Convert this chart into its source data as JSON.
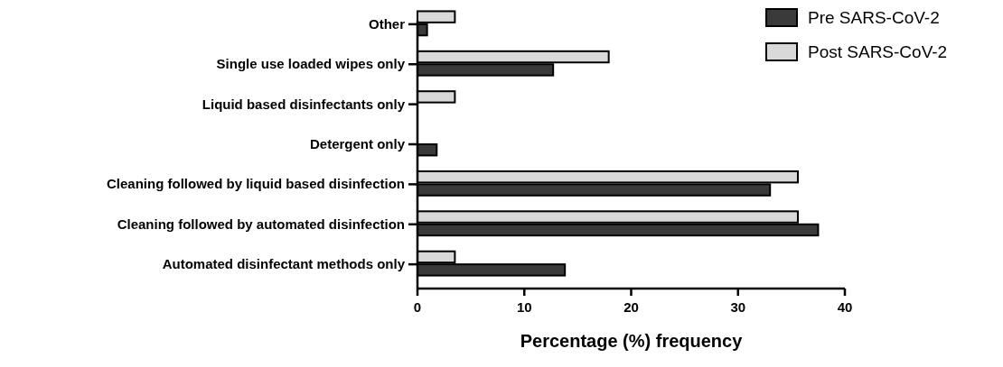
{
  "chart_data": {
    "type": "bar",
    "orientation": "horizontal",
    "xlabel": "Percentage (%) frequency",
    "categories": [
      "Other",
      "Single use loaded wipes only",
      "Liquid based disinfectants only",
      "Detergent only",
      "Cleaning followed by liquid based disinfection",
      "Cleaning followed by automated disinfection",
      "Automated disinfectant methods only"
    ],
    "series": [
      {
        "name": "Pre SARS-CoV-2",
        "color": "#3a3a3a",
        "values": [
          0.9,
          12.7,
          0,
          1.8,
          33.0,
          37.5,
          13.8
        ]
      },
      {
        "name": "Post SARS-CoV-2",
        "color": "#d9d9d9",
        "values": [
          3.5,
          17.9,
          3.5,
          0,
          35.6,
          35.6,
          3.5
        ]
      }
    ],
    "xlim": [
      0,
      40
    ],
    "xticks": [
      0,
      10,
      20,
      30,
      40
    ],
    "grid": false,
    "legend": "top right"
  }
}
